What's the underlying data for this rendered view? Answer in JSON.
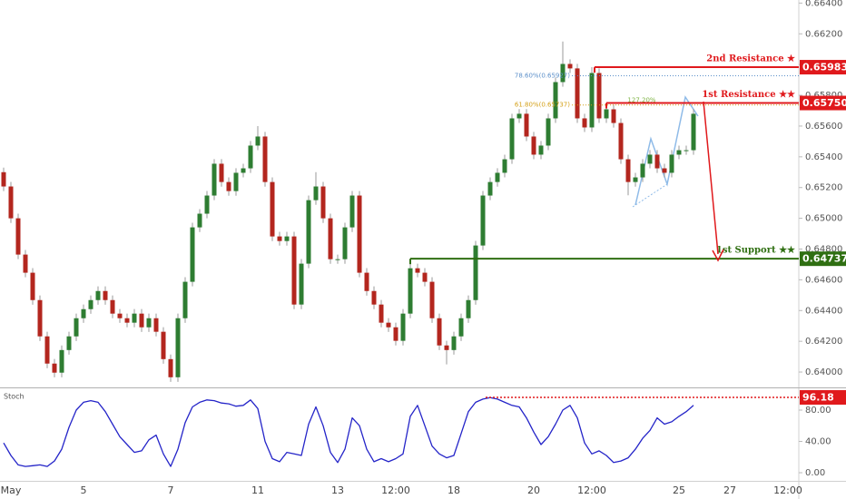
{
  "chart_data": [
    {
      "type": "candlestick",
      "categories": [
        null,
        "May",
        null,
        null,
        null,
        null,
        null,
        null,
        null,
        null,
        null,
        "5",
        null,
        null,
        null,
        null,
        null,
        null,
        null,
        null,
        null,
        null,
        null,
        "7",
        null,
        null,
        null,
        null,
        null,
        null,
        null,
        null,
        null,
        null,
        null,
        "11",
        null,
        null,
        null,
        null,
        null,
        null,
        null,
        null,
        null,
        null,
        "13",
        null,
        null,
        null,
        null,
        null,
        null,
        null,
        "12:00",
        null,
        null,
        null,
        null,
        null,
        null,
        null,
        "18",
        null,
        null,
        null,
        null,
        null,
        null,
        null,
        null,
        null,
        null,
        "20",
        null,
        null,
        null,
        null,
        null,
        null,
        null,
        "12:00",
        null,
        null,
        null,
        null,
        null,
        null,
        null,
        null,
        null,
        null,
        null,
        "25",
        null,
        null,
        null,
        null,
        null,
        null,
        "27",
        null,
        null,
        null,
        null,
        null,
        null,
        null,
        "12:00",
        null
      ],
      "open": [
        0.653,
        0.65207,
        0.65,
        0.64764,
        0.64646,
        0.64468,
        0.64232,
        0.64055,
        0.63996,
        0.64143,
        0.64232,
        0.6435,
        0.64409,
        0.64468,
        0.64527,
        0.64468,
        0.6438,
        0.6435,
        0.64321,
        0.6438,
        0.64291,
        0.6435,
        0.64262,
        0.64084,
        0.63966,
        0.6435,
        0.64587,
        0.64941,
        0.6503,
        0.65148,
        0.65355,
        0.65236,
        0.65177,
        0.65296,
        0.65325,
        0.65473,
        0.65532,
        0.65236,
        0.64882,
        0.64852,
        0.64882,
        0.64439,
        0.64705,
        0.65118,
        0.65207,
        0.65,
        0.64734,
        0.64734,
        0.64941,
        0.65148,
        0.64646,
        0.64527,
        0.64439,
        0.64321,
        0.64291,
        0.64203,
        0.6438,
        0.64675,
        0.64646,
        0.64587,
        0.6435,
        0.64173,
        0.64143,
        0.64232,
        0.6435,
        0.64468,
        0.64823,
        0.65148,
        0.65236,
        0.65296,
        0.65384,
        0.6565,
        0.6568,
        0.65532,
        0.65414,
        0.65473,
        0.6565,
        0.65886,
        0.66004,
        0.65975,
        0.6565,
        0.65591,
        0.65945,
        0.6565,
        0.65709,
        0.6562,
        0.65384,
        0.65236,
        0.65266,
        0.65355,
        0.65414,
        0.65325,
        0.65296,
        0.65414,
        0.65443,
        0.65443,
        null,
        null,
        null,
        null,
        null,
        null,
        null,
        null,
        null,
        null,
        null,
        null,
        null,
        null
      ],
      "high": [
        0.6533,
        0.65237,
        0.6503,
        0.64794,
        0.64676,
        0.64498,
        0.64262,
        0.64085,
        0.64173,
        0.64262,
        0.6438,
        0.64439,
        0.64498,
        0.64557,
        0.64557,
        0.64498,
        0.6441,
        0.6438,
        0.6441,
        0.6441,
        0.6438,
        0.6438,
        0.64292,
        0.64114,
        0.6438,
        0.64617,
        0.64971,
        0.6506,
        0.65178,
        0.65385,
        0.65385,
        0.65266,
        0.65326,
        0.65355,
        0.65503,
        0.656,
        0.65562,
        0.65266,
        0.64912,
        0.64912,
        0.64912,
        0.64735,
        0.65148,
        0.653,
        0.65237,
        0.6503,
        0.64764,
        0.64971,
        0.65178,
        0.65178,
        0.64676,
        0.64557,
        0.64469,
        0.64351,
        0.64321,
        0.6441,
        0.64705,
        0.64705,
        0.64676,
        0.64617,
        0.6438,
        0.64203,
        0.64262,
        0.6438,
        0.64498,
        0.64853,
        0.65178,
        0.65266,
        0.65326,
        0.65414,
        0.6568,
        0.6571,
        0.6571,
        0.65562,
        0.65503,
        0.6568,
        0.65916,
        0.6615,
        0.66034,
        0.66005,
        0.6568,
        0.65983,
        0.65975,
        0.65739,
        0.65739,
        0.6565,
        0.65414,
        0.65296,
        0.65385,
        0.65444,
        0.65444,
        0.65355,
        0.65444,
        0.65473,
        0.65473,
        0.6571,
        null,
        null,
        null,
        null,
        null,
        null,
        null,
        null,
        null,
        null,
        null,
        null,
        null,
        null
      ],
      "low": [
        0.65177,
        0.6497,
        0.64734,
        0.64616,
        0.64438,
        0.64202,
        0.64025,
        0.63966,
        0.63966,
        0.64113,
        0.64202,
        0.6432,
        0.64379,
        0.64438,
        0.64438,
        0.6435,
        0.6432,
        0.64291,
        0.64291,
        0.64261,
        0.64261,
        0.64232,
        0.64054,
        0.63936,
        0.63936,
        0.6432,
        0.64557,
        0.64911,
        0.65,
        0.65118,
        0.65206,
        0.65147,
        0.65147,
        0.65266,
        0.65295,
        0.65443,
        0.65206,
        0.64852,
        0.64822,
        0.64822,
        0.64409,
        0.64409,
        0.64675,
        0.65088,
        0.6497,
        0.64704,
        0.64704,
        0.64704,
        0.64911,
        0.64616,
        0.64497,
        0.64409,
        0.64291,
        0.64261,
        0.64173,
        0.64173,
        0.6435,
        0.64616,
        0.64557,
        0.6432,
        0.64143,
        0.6405,
        0.64113,
        0.64202,
        0.6432,
        0.64438,
        0.64793,
        0.65118,
        0.65206,
        0.65266,
        0.65354,
        0.6562,
        0.65502,
        0.65384,
        0.65384,
        0.65443,
        0.6562,
        0.65856,
        0.65945,
        0.6562,
        0.65561,
        0.65561,
        0.6562,
        0.6562,
        0.6559,
        0.65354,
        0.6515,
        0.65206,
        0.65236,
        0.65325,
        0.65295,
        0.65266,
        0.65266,
        0.65384,
        0.65413,
        0.65413,
        null,
        null,
        null,
        null,
        null,
        null,
        null,
        null,
        null,
        null,
        null,
        null,
        null,
        null
      ],
      "close": [
        0.65207,
        0.65,
        0.64764,
        0.64646,
        0.64468,
        0.64232,
        0.64055,
        0.63996,
        0.64143,
        0.64232,
        0.6435,
        0.64409,
        0.64468,
        0.64527,
        0.64468,
        0.6438,
        0.6435,
        0.64321,
        0.6438,
        0.64291,
        0.6435,
        0.64262,
        0.64084,
        0.63966,
        0.6435,
        0.64587,
        0.64941,
        0.6503,
        0.65148,
        0.65355,
        0.65236,
        0.65177,
        0.65296,
        0.65325,
        0.65473,
        0.65532,
        0.65236,
        0.64882,
        0.64852,
        0.64882,
        0.64439,
        0.64705,
        0.65118,
        0.65207,
        0.65,
        0.64734,
        0.64734,
        0.64941,
        0.65148,
        0.64646,
        0.64527,
        0.64439,
        0.64321,
        0.64291,
        0.64203,
        0.6438,
        0.64675,
        0.64646,
        0.64587,
        0.6435,
        0.64173,
        0.64143,
        0.64232,
        0.6435,
        0.64468,
        0.64823,
        0.65148,
        0.65236,
        0.65296,
        0.65384,
        0.6565,
        0.6568,
        0.65532,
        0.65414,
        0.65473,
        0.6565,
        0.65886,
        0.66004,
        0.65975,
        0.6565,
        0.65591,
        0.65945,
        0.6565,
        0.65709,
        0.6562,
        0.65384,
        0.65236,
        0.65266,
        0.65355,
        0.65414,
        0.65325,
        0.65296,
        0.65414,
        0.65443,
        0.65443,
        0.6568,
        null,
        null,
        null,
        null,
        null,
        null,
        null,
        null,
        null,
        null,
        null,
        null,
        null,
        null
      ],
      "up_color": "#2e7d32",
      "down_color": "#b3261e",
      "ylim": [
        0.639,
        0.6642
      ],
      "yticks": [
        {
          "value": 0.64,
          "label": "0.64000"
        },
        {
          "value": 0.642,
          "label": "0.64200"
        },
        {
          "value": 0.644,
          "label": "0.64400"
        },
        {
          "value": 0.646,
          "label": "0.64600"
        },
        {
          "value": 0.648,
          "label": "0.64800"
        },
        {
          "value": 0.65,
          "label": "0.65000"
        },
        {
          "value": 0.652,
          "label": "0.65200"
        },
        {
          "value": 0.654,
          "label": "0.65400"
        },
        {
          "value": 0.656,
          "label": "0.65600"
        },
        {
          "value": 0.658,
          "label": "0.65800"
        },
        {
          "value": 0.66,
          "label": "0.66000"
        },
        {
          "value": 0.662,
          "label": "0.66200"
        },
        {
          "value": 0.664,
          "label": "0.66400"
        }
      ],
      "levels": [
        {
          "label": "2nd Resistance ★",
          "value": 0.65983,
          "value_label": "0.65983",
          "color": "#e0191c"
        },
        {
          "label": "1st Resistance ★★",
          "value": 0.6575,
          "value_label": "0.65750",
          "color": "#e0191c"
        },
        {
          "label": "1st Support ★★",
          "value": 0.64737,
          "value_label": "0.64737",
          "color": "#2f6f12"
        }
      ],
      "fib": [
        {
          "label": "78.60%(0.65927)",
          "value": 0.65927,
          "color": "#5b8fc9"
        },
        {
          "label": "61.80%(0.65737)",
          "value": 0.65737,
          "color": "#d4a017"
        }
      ],
      "annotation": "127.20%"
    },
    {
      "type": "line",
      "title": "Stoch",
      "color": "#2424c8",
      "values": [
        38,
        22,
        10,
        8,
        9,
        10,
        8,
        15,
        30,
        58,
        80,
        90,
        92,
        90,
        78,
        62,
        46,
        36,
        26,
        28,
        42,
        48,
        24,
        8,
        30,
        64,
        84,
        90,
        93,
        92,
        89,
        88,
        85,
        86,
        93,
        82,
        40,
        18,
        14,
        26,
        24,
        22,
        62,
        84,
        60,
        26,
        13,
        30,
        70,
        60,
        30,
        14,
        18,
        14,
        18,
        24,
        72,
        86,
        60,
        34,
        24,
        19,
        22,
        50,
        78,
        90,
        94,
        96,
        94,
        90,
        86,
        84,
        70,
        52,
        36,
        46,
        62,
        80,
        86,
        70,
        38,
        24,
        28,
        22,
        13,
        15,
        19,
        30,
        44,
        54,
        70,
        62,
        65,
        72,
        78,
        86,
        null,
        null,
        null,
        null,
        null,
        null,
        null,
        null,
        null,
        null,
        null,
        null,
        null,
        null
      ],
      "ylim": [
        -10.4,
        107.8
      ],
      "yticks": [
        {
          "value": 0,
          "label": "0.00"
        },
        {
          "value": 40,
          "label": "40.00"
        },
        {
          "value": 80,
          "label": "80.00"
        }
      ],
      "level": {
        "value": 96.18,
        "color": "#e0191c"
      }
    }
  ]
}
